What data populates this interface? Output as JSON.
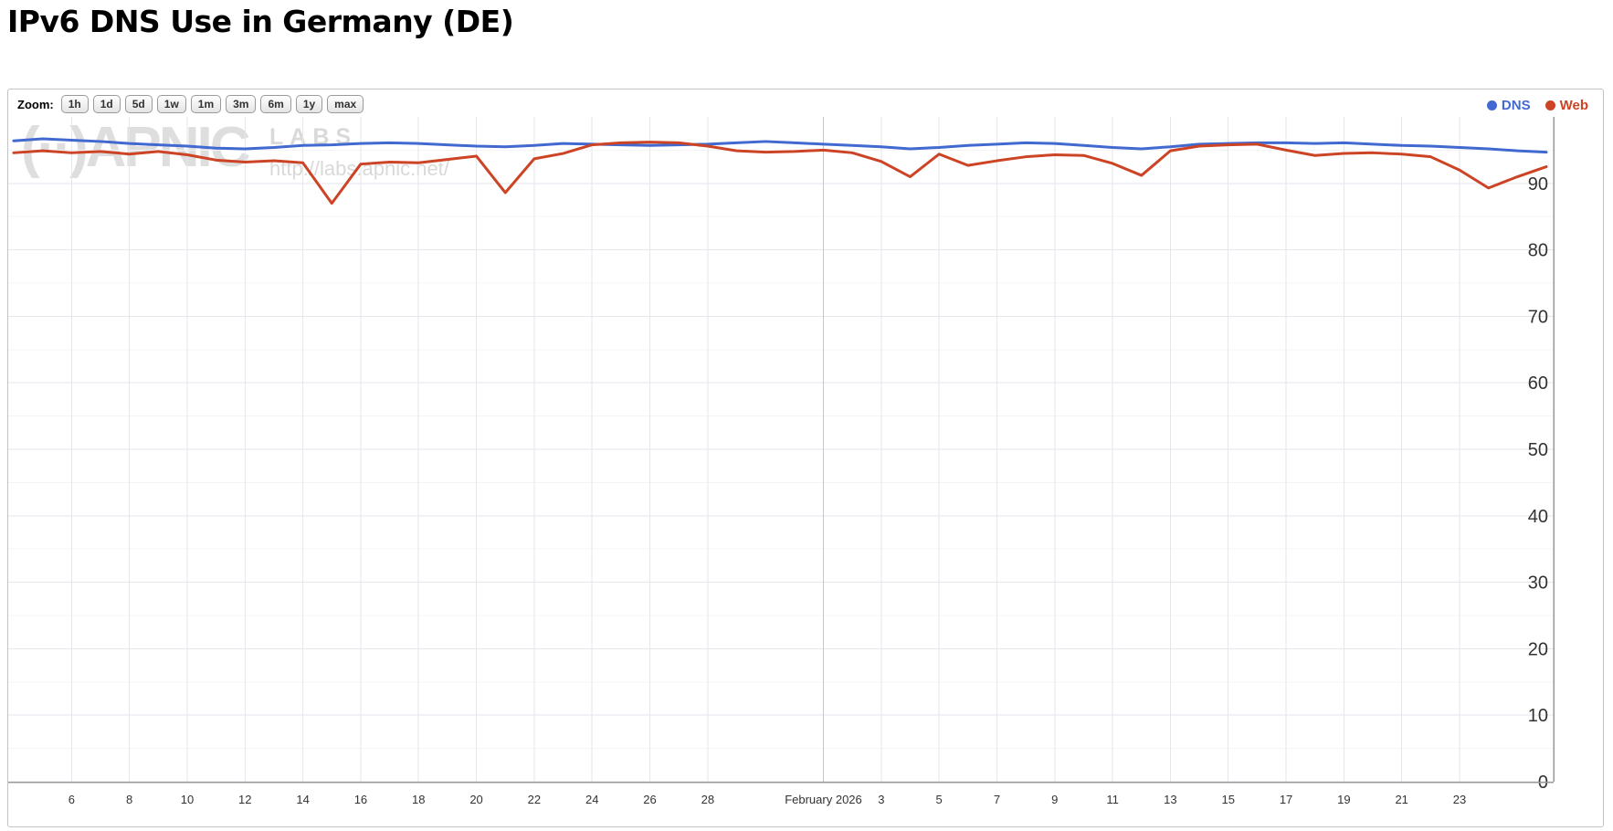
{
  "page": {
    "title": "IPv6 DNS Use in Germany (DE)"
  },
  "toolbar": {
    "zoom_label": "Zoom:",
    "buttons": [
      "1h",
      "1d",
      "5d",
      "1w",
      "1m",
      "3m",
      "6m",
      "1y",
      "max"
    ]
  },
  "legend": [
    {
      "label": "DNS",
      "color": "#4169d0"
    },
    {
      "label": "Web",
      "color": "#cc4425"
    }
  ],
  "watermark": {
    "logo": "(··)APNIC",
    "labs": "LABS",
    "url": "http://labs.apnic.net/"
  },
  "chart_data": {
    "type": "line",
    "title": "IPv6 DNS Use in Germany (DE)",
    "xlabel": "",
    "ylabel": "",
    "ylim": [
      0,
      100
    ],
    "yticks": [
      0,
      10,
      20,
      30,
      40,
      50,
      60,
      70,
      80,
      90
    ],
    "grid": true,
    "legend_position": "top-right",
    "x": [
      "2026-01-04",
      "2026-01-05",
      "2026-01-06",
      "2026-01-07",
      "2026-01-08",
      "2026-01-09",
      "2026-01-10",
      "2026-01-11",
      "2026-01-12",
      "2026-01-13",
      "2026-01-14",
      "2026-01-15",
      "2026-01-16",
      "2026-01-17",
      "2026-01-18",
      "2026-01-19",
      "2026-01-20",
      "2026-01-21",
      "2026-01-22",
      "2026-01-23",
      "2026-01-24",
      "2026-01-25",
      "2026-01-26",
      "2026-01-27",
      "2026-01-28",
      "2026-01-29",
      "2026-01-30",
      "2026-01-31",
      "2026-02-01",
      "2026-02-02",
      "2026-02-03",
      "2026-02-04",
      "2026-02-05",
      "2026-02-06",
      "2026-02-07",
      "2026-02-08",
      "2026-02-09",
      "2026-02-10",
      "2026-02-11",
      "2026-02-12",
      "2026-02-13",
      "2026-02-14",
      "2026-02-15",
      "2026-02-16",
      "2026-02-17",
      "2026-02-18",
      "2026-02-19",
      "2026-02-20",
      "2026-02-21",
      "2026-02-22",
      "2026-02-23",
      "2026-02-24",
      "2026-02-25",
      "2026-02-26"
    ],
    "xticks": [
      {
        "date": "2026-01-06",
        "label": "6"
      },
      {
        "date": "2026-01-08",
        "label": "8"
      },
      {
        "date": "2026-01-10",
        "label": "10"
      },
      {
        "date": "2026-01-12",
        "label": "12"
      },
      {
        "date": "2026-01-14",
        "label": "14"
      },
      {
        "date": "2026-01-16",
        "label": "16"
      },
      {
        "date": "2026-01-18",
        "label": "18"
      },
      {
        "date": "2026-01-20",
        "label": "20"
      },
      {
        "date": "2026-01-22",
        "label": "22"
      },
      {
        "date": "2026-01-24",
        "label": "24"
      },
      {
        "date": "2026-01-26",
        "label": "26"
      },
      {
        "date": "2026-01-28",
        "label": "28"
      },
      {
        "date": "2026-02-01",
        "label": "February 2026",
        "month": true
      },
      {
        "date": "2026-02-03",
        "label": "3"
      },
      {
        "date": "2026-02-05",
        "label": "5"
      },
      {
        "date": "2026-02-07",
        "label": "7"
      },
      {
        "date": "2026-02-09",
        "label": "9"
      },
      {
        "date": "2026-02-11",
        "label": "11"
      },
      {
        "date": "2026-02-13",
        "label": "13"
      },
      {
        "date": "2026-02-15",
        "label": "15"
      },
      {
        "date": "2026-02-17",
        "label": "17"
      },
      {
        "date": "2026-02-19",
        "label": "19"
      },
      {
        "date": "2026-02-21",
        "label": "21"
      },
      {
        "date": "2026-02-23",
        "label": "23"
      }
    ],
    "series": [
      {
        "name": "DNS",
        "color": "#4169d0",
        "values": [
          96.4,
          96.7,
          96.5,
          96.3,
          96.0,
          95.8,
          95.6,
          95.3,
          95.2,
          95.4,
          95.7,
          95.8,
          96.0,
          96.1,
          96.0,
          95.8,
          95.6,
          95.5,
          95.7,
          96.0,
          95.9,
          95.8,
          95.7,
          95.8,
          95.9,
          96.1,
          96.3,
          96.1,
          95.9,
          95.7,
          95.5,
          95.2,
          95.4,
          95.7,
          95.9,
          96.1,
          96.0,
          95.7,
          95.4,
          95.2,
          95.5,
          95.9,
          96.0,
          96.1,
          96.1,
          96.0,
          96.1,
          95.9,
          95.7,
          95.6,
          95.4,
          95.2,
          94.9,
          94.7
        ]
      },
      {
        "name": "Web",
        "color": "#cc4425",
        "values": [
          94.6,
          94.9,
          94.6,
          94.8,
          94.4,
          94.8,
          94.3,
          93.5,
          93.2,
          93.4,
          93.1,
          87.0,
          92.9,
          93.2,
          93.1,
          93.6,
          94.1,
          88.6,
          93.7,
          94.5,
          95.8,
          96.1,
          96.2,
          96.1,
          95.6,
          94.9,
          94.7,
          94.8,
          95.0,
          94.6,
          93.3,
          91.0,
          94.4,
          92.7,
          93.4,
          94.0,
          94.3,
          94.2,
          93.0,
          91.2,
          94.9,
          95.6,
          95.8,
          95.9,
          95.0,
          94.2,
          94.5,
          94.6,
          94.4,
          94.0,
          92.0,
          89.3,
          91.0,
          92.5
        ]
      }
    ]
  }
}
